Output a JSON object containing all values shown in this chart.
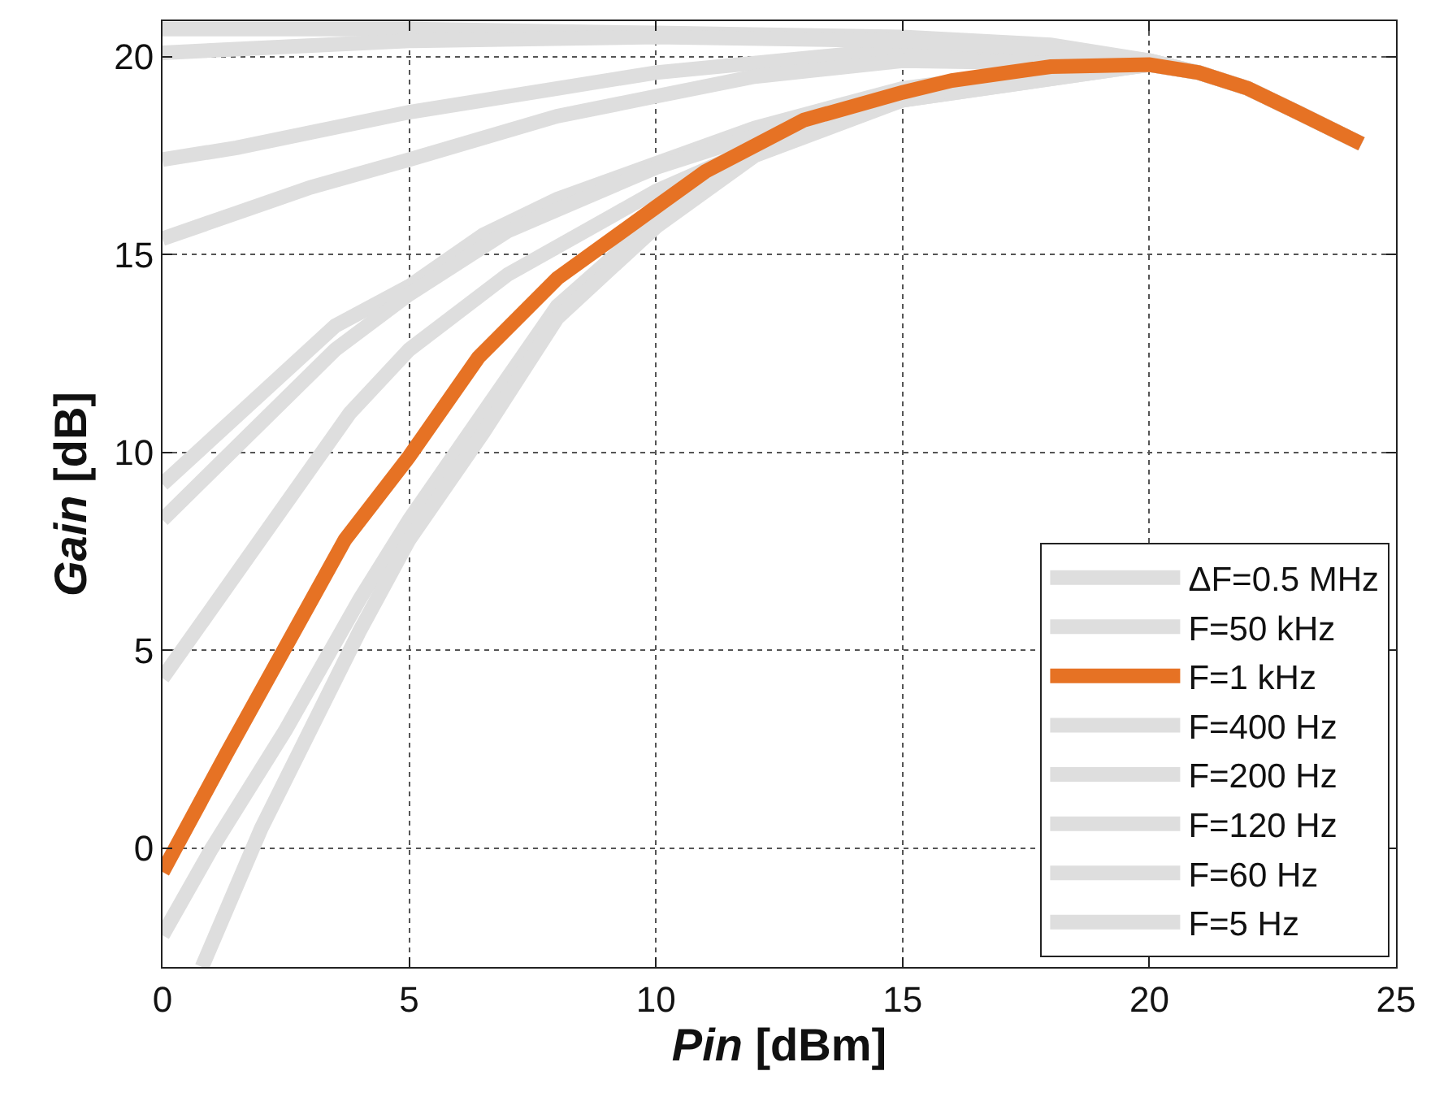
{
  "chart_data": {
    "type": "line",
    "xlabel": "Pin [dBm]",
    "ylabel": "Gain [dB]",
    "xlim": [
      0,
      25
    ],
    "ylim": [
      -3,
      20.9
    ],
    "xticks": [
      0,
      5,
      10,
      15,
      20,
      25
    ],
    "yticks": [
      0,
      5,
      10,
      15,
      20
    ],
    "grid": true,
    "legend": "bottom right",
    "marker": "none",
    "line_style": "solid",
    "series": [
      {
        "name": "ΔF=0.5 MHz",
        "color": "#dedede",
        "x": [
          0,
          5,
          10,
          15,
          18,
          20,
          21,
          22,
          23,
          24.3
        ],
        "values": [
          20.7,
          20.7,
          20.6,
          20.5,
          20.3,
          19.9,
          19.6,
          19.2,
          18.6,
          17.8
        ]
      },
      {
        "name": "F=50 kHz",
        "color": "#dedede",
        "x": [
          0,
          1.5,
          5,
          8,
          10,
          15,
          18,
          20,
          21,
          22,
          23,
          24.3
        ],
        "values": [
          17.4,
          17.7,
          18.6,
          19.2,
          19.6,
          20.2,
          20.1,
          19.9,
          19.6,
          19.2,
          18.6,
          17.8
        ]
      },
      {
        "name": "F=1 kHz",
        "color": "#e67224",
        "x": [
          0,
          1.3,
          3.7,
          5,
          6.4,
          8,
          10,
          11,
          13,
          15,
          16,
          18,
          20,
          21,
          22,
          23,
          24.3
        ],
        "values": [
          -0.6,
          2.4,
          7.8,
          9.9,
          12.4,
          14.4,
          16.2,
          17.1,
          18.4,
          19.1,
          19.4,
          19.75,
          19.8,
          19.6,
          19.2,
          18.6,
          17.8
        ]
      },
      {
        "name": "F=400 Hz",
        "color": "#dedede",
        "x": [
          0,
          3,
          5,
          8,
          10,
          12,
          15,
          20,
          21,
          22,
          23,
          24.3
        ],
        "values": [
          15.4,
          16.7,
          17.4,
          18.5,
          19.0,
          19.5,
          19.9,
          19.8,
          19.6,
          19.2,
          18.6,
          17.8
        ]
      },
      {
        "name": "F=200 Hz",
        "color": "#dedede",
        "x": [
          0,
          3.5,
          5,
          6.5,
          8,
          10,
          12,
          15,
          18,
          20,
          21,
          22,
          23,
          24.3
        ],
        "values": [
          9.2,
          13.2,
          14.2,
          15.5,
          16.4,
          17.3,
          18.2,
          19.2,
          19.7,
          19.8,
          19.6,
          19.2,
          18.6,
          17.8
        ]
      },
      {
        "name": "F=120 Hz",
        "color": "#dedede",
        "x": [
          0,
          3.8,
          5,
          7,
          10,
          12,
          15,
          20,
          21,
          22,
          23,
          24.3
        ],
        "values": [
          4.3,
          11.0,
          12.6,
          14.5,
          16.6,
          17.7,
          18.9,
          19.8,
          19.6,
          19.2,
          18.6,
          17.8
        ]
      },
      {
        "name": "F=60 Hz",
        "color": "#dedede",
        "x": [
          0,
          1,
          2.5,
          4,
          5,
          6.5,
          8,
          10,
          11,
          13,
          15,
          18,
          20,
          21,
          22,
          23,
          24.3
        ],
        "values": [
          -2.2,
          0.0,
          3.0,
          6.3,
          8.3,
          11.0,
          13.7,
          15.9,
          16.9,
          18.2,
          19.0,
          19.7,
          19.8,
          19.6,
          19.2,
          18.6,
          17.8
        ]
      },
      {
        "name": "F=5 Hz",
        "color": "#dedede",
        "x": [
          0.8,
          2,
          3,
          4,
          5,
          6.5,
          8,
          10,
          12,
          15,
          20,
          21,
          22,
          23,
          24.3
        ],
        "values": [
          -3.0,
          0.5,
          3.0,
          5.5,
          7.8,
          10.5,
          13.4,
          15.7,
          17.5,
          18.9,
          19.8,
          19.6,
          19.2,
          18.6,
          17.8
        ]
      },
      {
        "color": "#dedede",
        "x": [
          0,
          5,
          10,
          15,
          18,
          20,
          21,
          22,
          23,
          24.3
        ],
        "values": [
          20.1,
          20.4,
          20.5,
          20.4,
          20.2,
          19.9,
          19.6,
          19.2,
          18.6,
          17.8
        ]
      },
      {
        "color": "#dedede",
        "x": [
          0,
          3.5,
          5,
          7,
          10,
          12,
          15,
          20,
          21,
          22,
          23,
          24.3
        ],
        "values": [
          8.3,
          12.6,
          14.0,
          15.6,
          17.2,
          18.0,
          19.0,
          19.8,
          19.6,
          19.2,
          18.6,
          17.8
        ]
      }
    ]
  }
}
